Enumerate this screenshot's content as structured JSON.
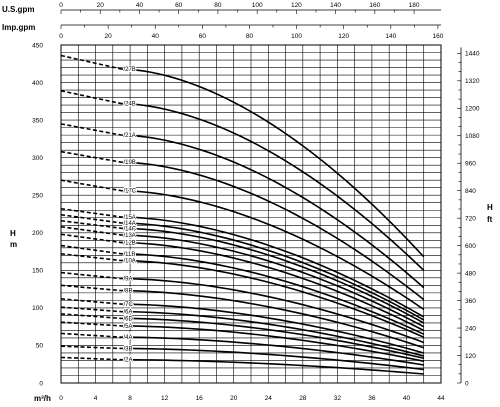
{
  "chart_data": {
    "type": "line",
    "axes": {
      "us_gpm": {
        "label": "U.S.gpm",
        "ticks": [
          0,
          20,
          40,
          60,
          80,
          100,
          120,
          140,
          160,
          180
        ],
        "range": [
          0,
          180
        ]
      },
      "imp_gpm": {
        "label": "Imp.gpm",
        "ticks": [
          0,
          20,
          40,
          60,
          80,
          100,
          120,
          140,
          160
        ],
        "range": [
          0,
          160
        ]
      },
      "x": {
        "label": "m³/h",
        "ticks": [
          0,
          4,
          8,
          12,
          16,
          20,
          24,
          28,
          32,
          36,
          40,
          44
        ],
        "range": [
          0,
          44
        ]
      },
      "y_left": {
        "label": "H\nm",
        "ticks": [
          0,
          50,
          100,
          150,
          200,
          250,
          300,
          350,
          400,
          450
        ],
        "range": [
          0,
          450
        ]
      },
      "y_right": {
        "label": "H\nft",
        "ticks": [
          0,
          120,
          240,
          360,
          480,
          600,
          720,
          840,
          960,
          1080,
          1200,
          1320,
          1440
        ]
      }
    },
    "grid": true,
    "dashed_until_x": 7,
    "x_end": 42,
    "series": [
      {
        "name": "/27B",
        "h0": 436,
        "hd": 418,
        "hend": 168
      },
      {
        "name": "/24B",
        "h0": 389,
        "hd": 372,
        "hend": 150
      },
      {
        "name": "/21A",
        "h0": 345,
        "hd": 330,
        "hend": 127
      },
      {
        "name": "/19B",
        "h0": 308,
        "hd": 294,
        "hend": 111
      },
      {
        "name": "/17C",
        "h0": 270,
        "hd": 256,
        "hend": 98
      },
      {
        "name": "/15A",
        "h0": 232,
        "hd": 221,
        "hend": 88
      },
      {
        "name": "/14A",
        "h0": 224,
        "hd": 213,
        "hend": 84
      },
      {
        "name": "/14C",
        "h0": 216,
        "hd": 206,
        "hend": 80
      },
      {
        "name": "/13A",
        "h0": 208,
        "hd": 197,
        "hend": 75
      },
      {
        "name": "/12B",
        "h0": 198,
        "hd": 187,
        "hend": 70
      },
      {
        "name": "/11B",
        "h0": 183,
        "hd": 172,
        "hend": 65
      },
      {
        "name": "/10A",
        "h0": 172,
        "hd": 163,
        "hend": 61
      },
      {
        "name": "/9A",
        "h0": 147,
        "hd": 139,
        "hend": 54
      },
      {
        "name": "/8B",
        "h0": 130,
        "hd": 123,
        "hend": 47
      },
      {
        "name": "/7C",
        "h0": 112,
        "hd": 105,
        "hend": 40
      },
      {
        "name": "/6A",
        "h0": 101,
        "hd": 95,
        "hend": 36
      },
      {
        "name": "/6D",
        "h0": 92,
        "hd": 86,
        "hend": 33
      },
      {
        "name": "/5A",
        "h0": 81,
        "hd": 76,
        "hend": 29
      },
      {
        "name": "/4A",
        "h0": 66,
        "hd": 61,
        "hend": 24
      },
      {
        "name": "/3B",
        "h0": 49,
        "hd": 46,
        "hend": 18
      },
      {
        "name": "/2A",
        "h0": 34,
        "hd": 31,
        "hend": 12
      }
    ]
  }
}
